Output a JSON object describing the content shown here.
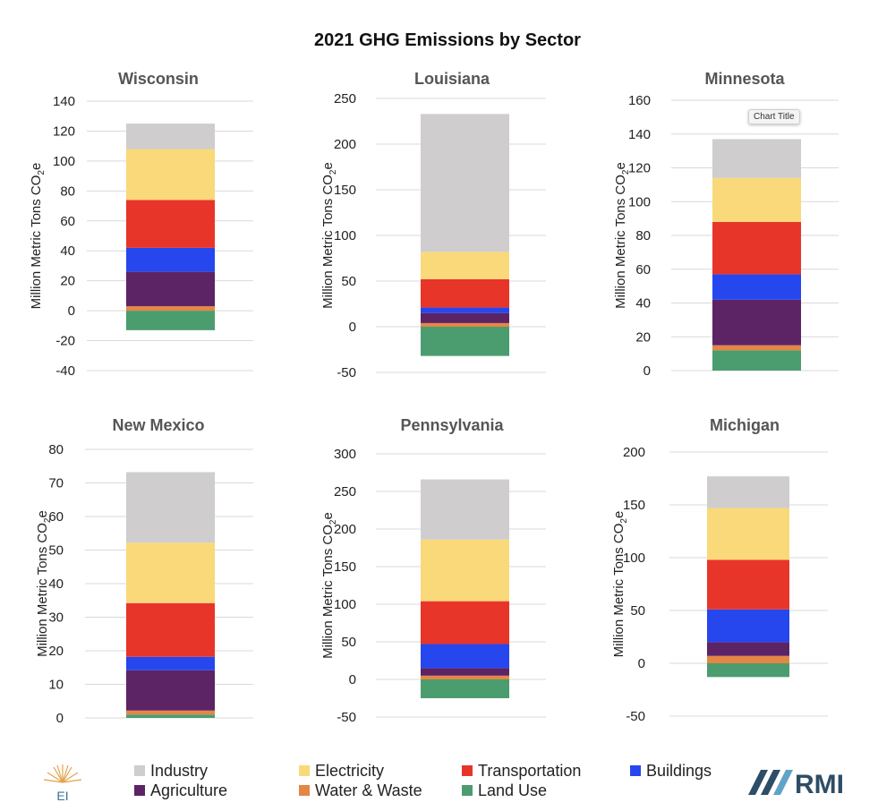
{
  "title": "2021 GHG Emissions by Sector",
  "tooltip": "Chart Title",
  "logos": {
    "left": "EI",
    "right": "RMI"
  },
  "colors": {
    "Industry": "#cfcdce",
    "Electricity": "#f9d97a",
    "Transportation": "#e8352a",
    "Buildings": "#2647ee",
    "Agriculture": "#5c2365",
    "Water & Waste": "#e48744",
    "Land Use": "#4b9c6f"
  },
  "legend": [
    {
      "label": "Industry",
      "color": "#cfcdce"
    },
    {
      "label": "Electricity",
      "color": "#f9d97a"
    },
    {
      "label": "Transportation",
      "color": "#e8352a"
    },
    {
      "label": "Buildings",
      "color": "#2647ee"
    },
    {
      "label": "Agriculture",
      "color": "#5c2365"
    },
    {
      "label": "Water & Waste",
      "color": "#e48744"
    },
    {
      "label": "Land Use",
      "color": "#4b9c6f"
    }
  ],
  "chart_data": [
    {
      "type": "bar",
      "stacked": true,
      "title": "Wisconsin",
      "ylabel": "Million Metric Tons CO2e",
      "ylim": [
        -40,
        140
      ],
      "yticks": [
        -40,
        -20,
        0,
        20,
        40,
        60,
        80,
        100,
        120,
        140
      ],
      "series": [
        {
          "name": "Land Use",
          "values": [
            -13
          ]
        },
        {
          "name": "Water & Waste",
          "values": [
            3
          ]
        },
        {
          "name": "Agriculture",
          "values": [
            23
          ]
        },
        {
          "name": "Buildings",
          "values": [
            16
          ]
        },
        {
          "name": "Transportation",
          "values": [
            32
          ]
        },
        {
          "name": "Electricity",
          "values": [
            34
          ]
        },
        {
          "name": "Industry",
          "values": [
            17
          ]
        }
      ]
    },
    {
      "type": "bar",
      "stacked": true,
      "title": "Louisiana",
      "ylabel": "Million Metric Tons CO2e",
      "ylim": [
        -50,
        250
      ],
      "yticks": [
        -50,
        0,
        50,
        100,
        150,
        200,
        250
      ],
      "series": [
        {
          "name": "Land Use",
          "values": [
            -32
          ]
        },
        {
          "name": "Water & Waste",
          "values": [
            4
          ]
        },
        {
          "name": "Agriculture",
          "values": [
            11
          ]
        },
        {
          "name": "Buildings",
          "values": [
            6
          ]
        },
        {
          "name": "Transportation",
          "values": [
            31
          ]
        },
        {
          "name": "Electricity",
          "values": [
            30
          ]
        },
        {
          "name": "Industry",
          "values": [
            151
          ]
        }
      ]
    },
    {
      "type": "bar",
      "stacked": true,
      "title": "Minnesota",
      "ylabel": "Million Metric Tons CO2e",
      "ylim": [
        0,
        160
      ],
      "yticks": [
        0,
        20,
        40,
        60,
        80,
        100,
        120,
        140,
        160
      ],
      "series": [
        {
          "name": "Land Use",
          "values": [
            12
          ]
        },
        {
          "name": "Water & Waste",
          "values": [
            3
          ]
        },
        {
          "name": "Agriculture",
          "values": [
            27
          ]
        },
        {
          "name": "Buildings",
          "values": [
            15
          ]
        },
        {
          "name": "Transportation",
          "values": [
            31
          ]
        },
        {
          "name": "Electricity",
          "values": [
            26
          ]
        },
        {
          "name": "Industry",
          "values": [
            23
          ]
        }
      ]
    },
    {
      "type": "bar",
      "stacked": true,
      "title": "New Mexico",
      "ylabel": "Million Metric Tons CO2e",
      "ylim": [
        0,
        80
      ],
      "yticks": [
        0,
        10,
        20,
        30,
        40,
        50,
        60,
        70,
        80
      ],
      "series": [
        {
          "name": "Land Use",
          "values": [
            1
          ]
        },
        {
          "name": "Water & Waste",
          "values": [
            1.2
          ]
        },
        {
          "name": "Agriculture",
          "values": [
            12
          ]
        },
        {
          "name": "Buildings",
          "values": [
            4
          ]
        },
        {
          "name": "Transportation",
          "values": [
            16
          ]
        },
        {
          "name": "Electricity",
          "values": [
            18
          ]
        },
        {
          "name": "Industry",
          "values": [
            21
          ]
        }
      ]
    },
    {
      "type": "bar",
      "stacked": true,
      "title": "Pennsylvania",
      "ylabel": "Million Metric Tons CO2e",
      "ylim": [
        -50,
        300
      ],
      "yticks": [
        -50,
        0,
        50,
        100,
        150,
        200,
        250,
        300
      ],
      "series": [
        {
          "name": "Land Use",
          "values": [
            -25
          ]
        },
        {
          "name": "Water & Waste",
          "values": [
            5
          ]
        },
        {
          "name": "Agriculture",
          "values": [
            10
          ]
        },
        {
          "name": "Buildings",
          "values": [
            32
          ]
        },
        {
          "name": "Transportation",
          "values": [
            57
          ]
        },
        {
          "name": "Electricity",
          "values": [
            82
          ]
        },
        {
          "name": "Industry",
          "values": [
            80
          ]
        }
      ]
    },
    {
      "type": "bar",
      "stacked": true,
      "title": "Michigan",
      "ylabel": "Million Metric Tons CO2e",
      "ylim": [
        -50,
        200
      ],
      "yticks": [
        -50,
        0,
        50,
        100,
        150,
        200
      ],
      "series": [
        {
          "name": "Land Use",
          "values": [
            -13
          ]
        },
        {
          "name": "Water & Waste",
          "values": [
            7
          ]
        },
        {
          "name": "Agriculture",
          "values": [
            13
          ]
        },
        {
          "name": "Buildings",
          "values": [
            31
          ]
        },
        {
          "name": "Transportation",
          "values": [
            47
          ]
        },
        {
          "name": "Electricity",
          "values": [
            49
          ]
        },
        {
          "name": "Industry",
          "values": [
            30
          ]
        }
      ]
    }
  ]
}
